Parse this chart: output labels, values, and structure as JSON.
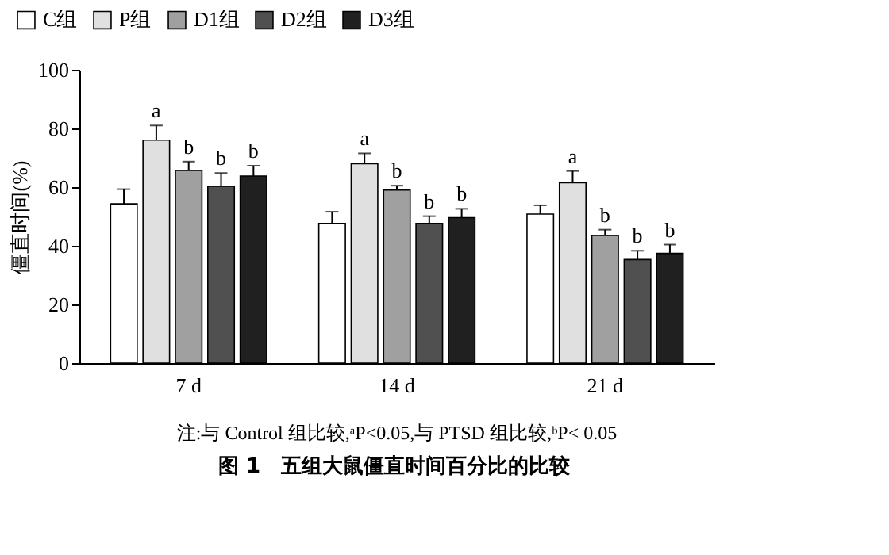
{
  "chart_data": {
    "type": "bar",
    "title": "图 1　五组大鼠僵直时间百分比的比较",
    "ylabel": "僵直时间(%)",
    "categories": [
      "7 d",
      "14 d",
      "21 d"
    ],
    "series": [
      {
        "name": "C组",
        "color": "#ffffff",
        "values": [
          54.3,
          47.6,
          50.8
        ],
        "errors": [
          5,
          4,
          3
        ],
        "value_labels": [
          null,
          null,
          null
        ]
      },
      {
        "name": "P组",
        "color": "#e0e0e0",
        "values": [
          76,
          68,
          61.5
        ],
        "errors": [
          5,
          3.5,
          4
        ],
        "value_labels": [
          "a",
          "a",
          "a"
        ]
      },
      {
        "name": "D1组",
        "color": "#a0a0a0",
        "values": [
          65.7,
          59,
          43.5
        ],
        "errors": [
          3,
          1.5,
          2
        ],
        "value_labels": [
          "b",
          "b",
          "b"
        ]
      },
      {
        "name": "D2组",
        "color": "#505050",
        "values": [
          60.3,
          47.6,
          35.3
        ],
        "errors": [
          4.5,
          2.5,
          3
        ],
        "value_labels": [
          "b",
          "b",
          "b"
        ]
      },
      {
        "name": "D3组",
        "color": "#202020",
        "values": [
          63.8,
          49.6,
          37.4
        ],
        "errors": [
          3.5,
          3,
          3
        ],
        "value_labels": [
          "b",
          "b",
          "b"
        ]
      }
    ],
    "ylim": [
      0,
      100
    ],
    "yticks": [
      0,
      20,
      40,
      60,
      80,
      100
    ],
    "grid": false,
    "legend": "top",
    "annotations": [
      "注:与 Control 组比较,ᵃP<0.05,与 PTSD 组比较,ᵇP< 0.05"
    ]
  }
}
